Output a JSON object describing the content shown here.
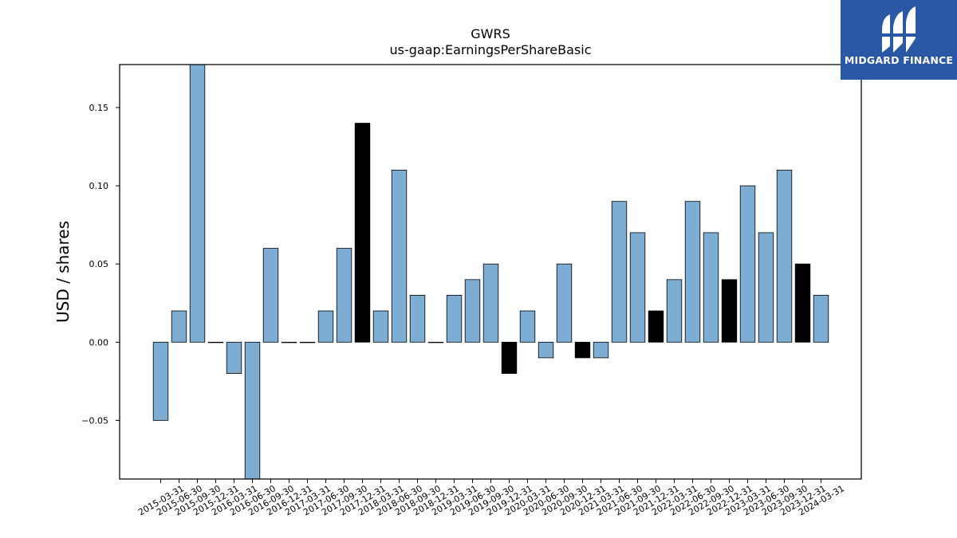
{
  "chart_data": {
    "type": "bar",
    "title": "GWRS",
    "subtitle": "us-gaap:EarningsPerShareBasic",
    "xlabel": "",
    "ylabel": "USD / shares",
    "ylim": [
      -0.0875,
      0.1775
    ],
    "yticks": [
      -0.05,
      0.0,
      0.05,
      0.1,
      0.15
    ],
    "ytick_labels": [
      "−0.05",
      "0.00",
      "0.05",
      "0.10",
      "0.15"
    ],
    "grid": false,
    "categories": [
      "2015-03-31",
      "2015-06-30",
      "2015-09-30",
      "2015-12-31",
      "2016-03-31",
      "2016-06-30",
      "2016-09-30",
      "2016-12-31",
      "2017-03-31",
      "2017-06-30",
      "2017-09-30",
      "2017-12-31",
      "2018-03-31",
      "2018-06-30",
      "2018-09-30",
      "2018-12-31",
      "2019-03-31",
      "2019-06-30",
      "2019-09-30",
      "2019-12-31",
      "2020-03-31",
      "2020-06-30",
      "2020-09-30",
      "2020-12-31",
      "2021-03-31",
      "2021-06-30",
      "2021-09-30",
      "2021-12-31",
      "2022-03-31",
      "2022-06-30",
      "2022-09-30",
      "2022-12-31",
      "2023-03-31",
      "2023-06-30",
      "2023-09-30",
      "2023-12-31",
      "2024-03-31"
    ],
    "values": [
      -0.05,
      0.02,
      0.18,
      0.0,
      -0.02,
      -0.09,
      0.06,
      0.0,
      0.0,
      0.02,
      0.06,
      0.14,
      0.02,
      0.11,
      0.03,
      0.0,
      0.03,
      0.04,
      0.05,
      -0.02,
      0.02,
      -0.01,
      0.05,
      -0.01,
      -0.01,
      0.09,
      0.07,
      0.02,
      0.04,
      0.09,
      0.07,
      0.04,
      0.1,
      0.07,
      0.11,
      0.05,
      0.03
    ],
    "highlight": [
      false,
      false,
      false,
      false,
      false,
      false,
      false,
      false,
      false,
      false,
      false,
      true,
      false,
      false,
      false,
      false,
      false,
      false,
      false,
      true,
      false,
      false,
      false,
      true,
      false,
      false,
      false,
      true,
      false,
      false,
      false,
      true,
      false,
      false,
      false,
      true,
      false
    ],
    "colors": {
      "bar": "#7eadd3",
      "highlight": "#000000",
      "edge": "#000000"
    }
  },
  "logo": {
    "text": "MIDGARD FINANCE",
    "background": "#2a58a6"
  }
}
